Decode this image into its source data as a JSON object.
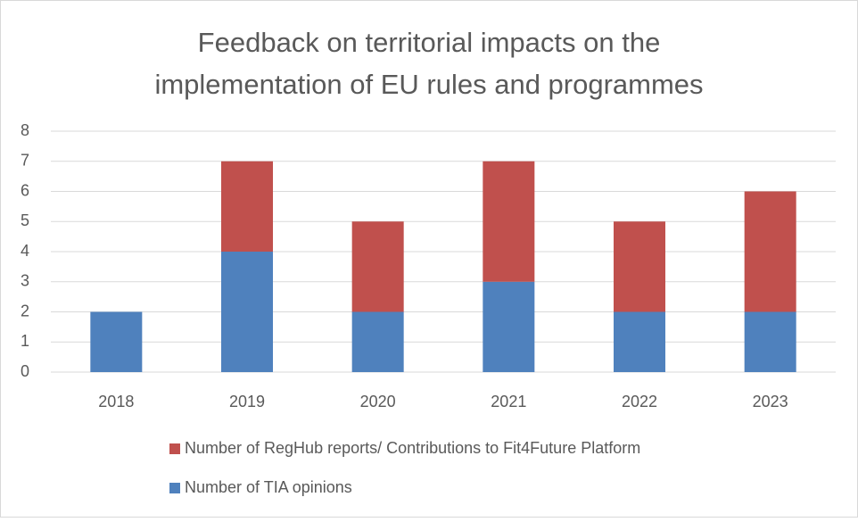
{
  "chart_data": {
    "type": "stacked_bar",
    "title": [
      "Feedback on territorial impacts on the",
      "implementation of EU rules and programmes"
    ],
    "categories": [
      "2018",
      "2019",
      "2020",
      "2021",
      "2022",
      "2023"
    ],
    "series": [
      {
        "name": "Number of TIA opinions",
        "color": "#4f81bd",
        "values": [
          2,
          4,
          2,
          3,
          2,
          2
        ]
      },
      {
        "name": "Number of RegHub reports/ Contributions to Fit4Future Platform",
        "color": "#c0504d",
        "values": [
          0,
          3,
          3,
          4,
          3,
          4
        ]
      }
    ],
    "ylim": [
      0,
      8
    ],
    "yticks": [
      0,
      1,
      2,
      3,
      4,
      5,
      6,
      7,
      8
    ],
    "grid": true,
    "legend": "bottom"
  }
}
